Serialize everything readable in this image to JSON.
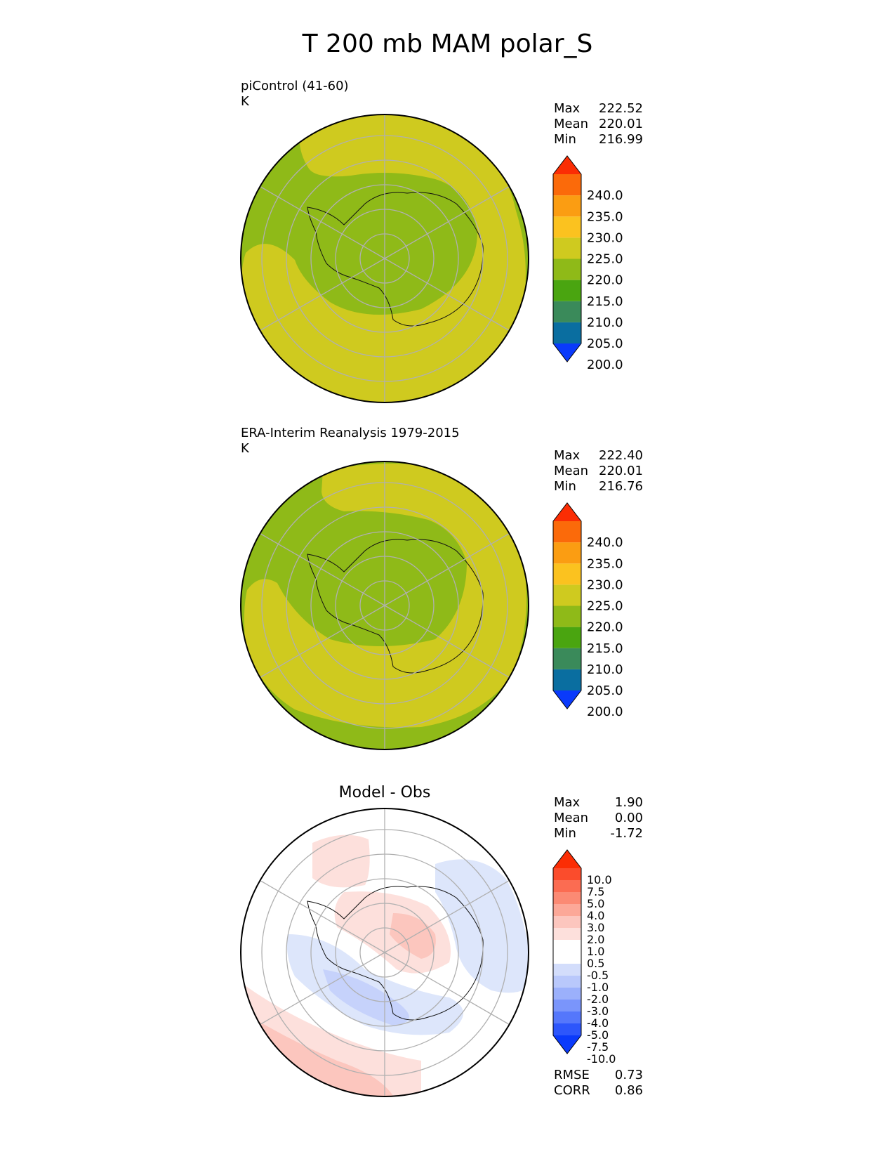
{
  "title": "T 200 mb MAM polar_S",
  "colors": {
    "green_dark": "#4aa510",
    "green": "#8fba18",
    "olive": "#cfca1f",
    "yellow": "#fbc21f",
    "orange": "#fb9d12",
    "orange_red": "#fb6a0a",
    "red": "#fb2d04",
    "teal": "#3a8a5a",
    "steel": "#0a6ea0",
    "blue": "#0a3afb"
  },
  "panels": [
    {
      "title": "piControl (41-60)",
      "units": "K",
      "stats": {
        "max_label": "Max",
        "max": "222.52",
        "mean_label": "Mean",
        "mean": "220.01",
        "min_label": "Min",
        "min": "216.99"
      },
      "colorbar": [
        "240.0",
        "235.0",
        "230.0",
        "225.0",
        "220.0",
        "215.0",
        "210.0",
        "205.0",
        "200.0"
      ]
    },
    {
      "title": "ERA-Interim Reanalysis 1979-2015",
      "units": "K",
      "stats": {
        "max_label": "Max",
        "max": "222.40",
        "mean_label": "Mean",
        "mean": "220.01",
        "min_label": "Min",
        "min": "216.76"
      },
      "colorbar": [
        "240.0",
        "235.0",
        "230.0",
        "225.0",
        "220.0",
        "215.0",
        "210.0",
        "205.0",
        "200.0"
      ]
    },
    {
      "title": "Model - Obs",
      "stats": {
        "max_label": "Max",
        "max": "1.90",
        "mean_label": "Mean",
        "mean": "0.00",
        "min_label": "Min",
        "min": "-1.72"
      },
      "colorbar": [
        "10.0",
        "7.5",
        "5.0",
        "4.0",
        "3.0",
        "2.0",
        "1.0",
        "0.5",
        "-0.5",
        "-1.0",
        "-2.0",
        "-3.0",
        "-4.0",
        "-5.0",
        "-7.5",
        "-10.0"
      ],
      "rmse_label": "RMSE",
      "rmse": "0.73",
      "corr_label": "CORR",
      "corr": "0.86"
    }
  ]
}
